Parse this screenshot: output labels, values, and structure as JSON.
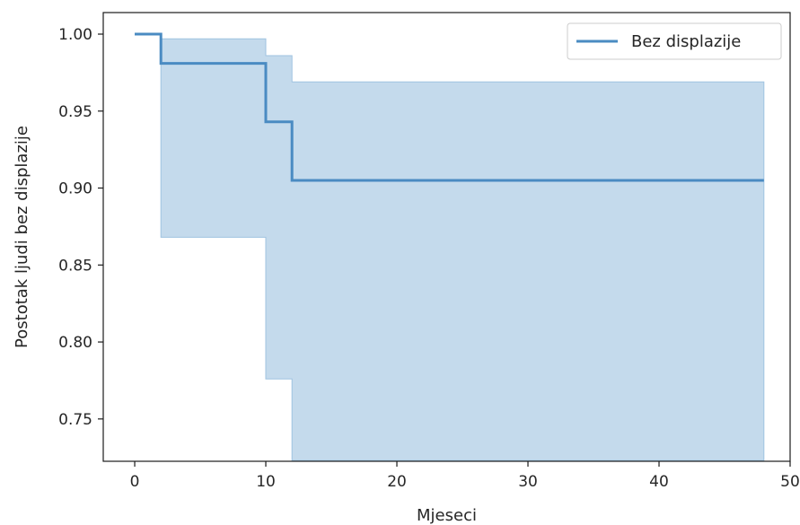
{
  "chart_data": {
    "type": "line",
    "title": "",
    "xlabel": "Mjeseci",
    "ylabel": "Postotak ljudi bez displazije",
    "xlim": [
      -2.4,
      50.0
    ],
    "ylim": [
      0.7225,
      1.014
    ],
    "xticks": [
      0,
      10,
      20,
      30,
      40,
      50
    ],
    "yticks": [
      0.75,
      0.8,
      0.85,
      0.9,
      0.95,
      1.0
    ],
    "xtick_labels": [
      "0",
      "10",
      "20",
      "30",
      "40",
      "50"
    ],
    "ytick_labels": [
      "0.75",
      "0.80",
      "0.85",
      "0.90",
      "0.95",
      "1.00"
    ],
    "legend_position": "top-right",
    "grid": false,
    "series": [
      {
        "name": "Bez displazije",
        "color": "#4a8bc2",
        "fill_color": "#c4daec",
        "step": true,
        "points": [
          {
            "x": 0,
            "y": 1.0,
            "ci_low": 1.0,
            "ci_high": 1.0
          },
          {
            "x": 2,
            "y": 0.981,
            "ci_low": 0.868,
            "ci_high": 0.997
          },
          {
            "x": 10,
            "y": 0.943,
            "ci_low": 0.776,
            "ci_high": 0.986
          },
          {
            "x": 12,
            "y": 0.905,
            "ci_low": 0.723,
            "ci_high": 0.969
          },
          {
            "x": 48,
            "y": 0.905,
            "ci_low": 0.723,
            "ci_high": 0.969
          }
        ]
      }
    ]
  }
}
